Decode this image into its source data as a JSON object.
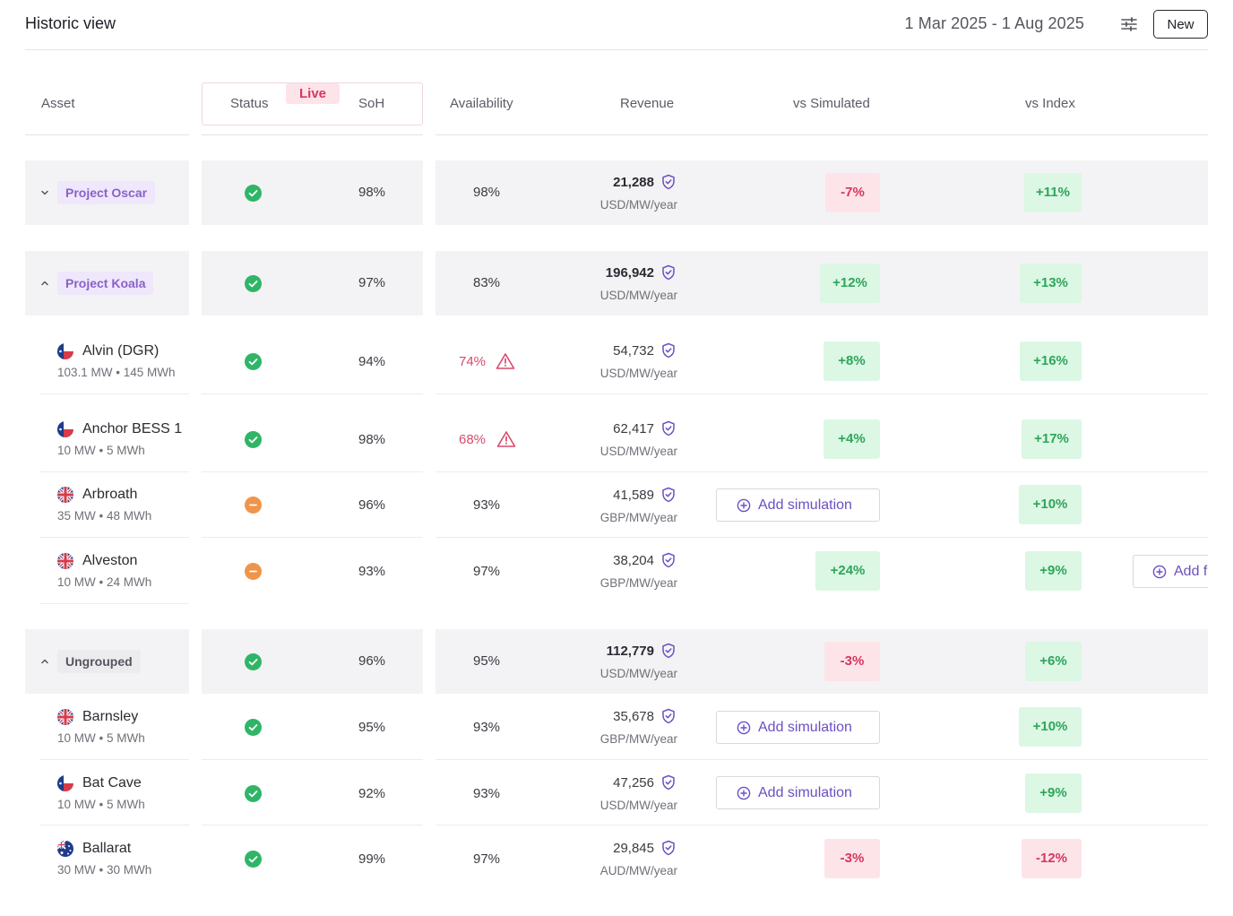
{
  "header": {
    "title": "Historic view",
    "date_range": "1 Mar 2025 - 1 Aug 2025",
    "filter_icon": "sliders-icon",
    "new_label": "New"
  },
  "columns": {
    "asset": "Asset",
    "status": "Status",
    "live_badge": "Live",
    "soh": "SoH",
    "availability": "Availability",
    "revenue": "Revenue",
    "vs_simulated": "vs Simulated",
    "vs_index": "vs Index"
  },
  "groups": [
    {
      "name": "Project Oscar",
      "expanded": false,
      "status": "ok",
      "soh": "98%",
      "availability": "98%",
      "revenue": "21,288",
      "revenue_unit": "USD/MW/year",
      "vs_simulated": "-7%",
      "vs_index": "+11%"
    },
    {
      "name": "Project Koala",
      "expanded": true,
      "status": "ok",
      "soh": "97%",
      "availability": "83%",
      "revenue": "196,942",
      "revenue_unit": "USD/MW/year",
      "vs_simulated": "+12%",
      "vs_index": "+13%"
    },
    {
      "name": "Ungrouped",
      "expanded": true,
      "status": "ok",
      "soh": "96%",
      "availability": "95%",
      "revenue": "112,779",
      "revenue_unit": "USD/MW/year",
      "vs_simulated": "-3%",
      "vs_index": "+6%"
    }
  ],
  "assets": [
    {
      "name": "Alvin (DGR)",
      "spec": "103.1 MW • 145 MWh",
      "flag": "texas-flag-icon",
      "status": "ok",
      "soh": "94%",
      "availability": "74%",
      "availability_warning": true,
      "revenue": "54,732",
      "revenue_unit": "USD/MW/year",
      "vs_simulated": "+8%",
      "vs_index": "+16%"
    },
    {
      "name": "Anchor BESS 1",
      "spec": "10 MW • 5 MWh",
      "flag": "texas-flag-icon",
      "status": "ok",
      "soh": "98%",
      "availability": "68%",
      "availability_warning": true,
      "revenue": "62,417",
      "revenue_unit": "USD/MW/year",
      "vs_simulated": "+4%",
      "vs_index": "+17%"
    },
    {
      "name": "Arbroath",
      "spec": "35 MW • 48 MWh",
      "flag": "uk-flag-icon",
      "status": "warn",
      "soh": "96%",
      "availability": "93%",
      "revenue": "41,589",
      "revenue_unit": "GBP/MW/year",
      "vs_simulated_action": "Add simulation",
      "vs_index": "+10%"
    },
    {
      "name": "Alveston",
      "spec": "10 MW • 24 MWh",
      "flag": "uk-flag-icon",
      "status": "warn",
      "soh": "93%",
      "availability": "97%",
      "revenue": "38,204",
      "revenue_unit": "GBP/MW/year",
      "vs_simulated": "+24%",
      "vs_index": "+9%",
      "extra_action": "Add f"
    },
    {
      "name": "Barnsley",
      "spec": "10 MW • 5 MWh",
      "flag": "uk-flag-icon",
      "status": "ok",
      "soh": "95%",
      "availability": "93%",
      "revenue": "35,678",
      "revenue_unit": "GBP/MW/year",
      "vs_simulated_action": "Add simulation",
      "vs_index": "+10%"
    },
    {
      "name": "Bat Cave",
      "spec": "10 MW • 5 MWh",
      "flag": "texas-flag-icon",
      "status": "ok",
      "soh": "92%",
      "availability": "93%",
      "revenue": "47,256",
      "revenue_unit": "USD/MW/year",
      "vs_simulated_action": "Add simulation",
      "vs_index": "+9%"
    },
    {
      "name": "Ballarat",
      "spec": "30 MW • 30 MWh",
      "flag": "australia-flag-icon",
      "status": "ok",
      "soh": "99%",
      "availability": "97%",
      "revenue": "29,845",
      "revenue_unit": "AUD/MW/year",
      "vs_simulated": "-3%",
      "vs_index": "-12%"
    }
  ],
  "colors": {
    "positive_bg": "#dcf7e4",
    "positive_text": "#2ea55b",
    "negative_bg": "#fde4e9",
    "negative_text": "#d8365e",
    "accent": "#6d4fc1",
    "status_ok": "#2fb567",
    "status_warn": "#f0944a"
  }
}
